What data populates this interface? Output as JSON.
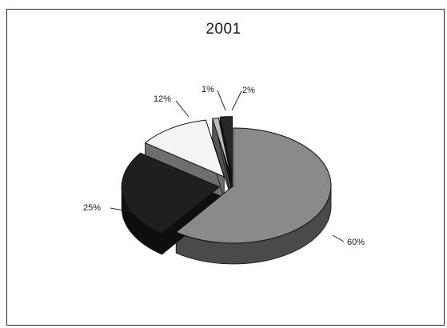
{
  "chart_data": {
    "type": "pie",
    "title": "2001",
    "slices": [
      {
        "label": "60%",
        "value": 60,
        "color": "#8a8a8a",
        "side": "#4a4a4a",
        "explode": 0
      },
      {
        "label": "25%",
        "value": 25,
        "color": "#1f1f1f",
        "side": "#0e0e0e",
        "explode": 18
      },
      {
        "label": "12%",
        "value": 12,
        "color": "#f4f4f4",
        "side": "#6e6e6e",
        "explode": 22
      },
      {
        "label": "1%",
        "value": 1,
        "color": "#bcbcbc",
        "side": "#555555",
        "explode": 22
      },
      {
        "label": "2%",
        "value": 2,
        "color": "#262626",
        "side": "#111111",
        "explode": 24
      }
    ],
    "three_d": true,
    "legend": "none"
  }
}
